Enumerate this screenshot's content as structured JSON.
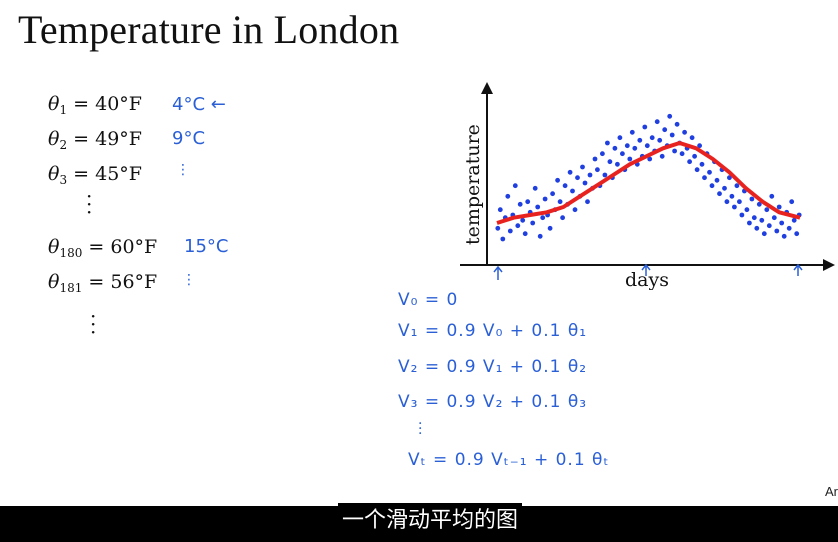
{
  "slide": {
    "title": "Temperature in London",
    "observations": [
      {
        "theta": "θ",
        "sub": "1",
        "value": "= 40°F",
        "note": "4°C ←"
      },
      {
        "theta": "θ",
        "sub": "2",
        "value": "= 49°F",
        "note": "9°C"
      },
      {
        "theta": "θ",
        "sub": "3",
        "value": "= 45°F",
        "note": "⋮"
      },
      {
        "theta": "θ",
        "sub": "180",
        "value": "= 60°F",
        "note": "15°C"
      },
      {
        "theta": "θ",
        "sub": "181",
        "value": "= 56°F",
        "note": "⋮"
      }
    ],
    "formulas": [
      "V₀ = 0",
      "V₁ = 0.9 V₀   + 0.1 θ₁",
      "V₂ = 0.9 V₁   + 0.1 θ₂",
      "V₃ = 0.9 V₂   + 0.1 θ₃",
      "Vₜ = 0.9 Vₜ₋₁  + 0.1 θₜ"
    ],
    "corner_text": "Ar",
    "caption": "一个滑动平均的图"
  },
  "chart_data": {
    "type": "scatter",
    "xlabel": "days",
    "ylabel": "temperature",
    "colors": {
      "points": "#1f3fe0",
      "average": "#e8231f",
      "axis": "#111111"
    },
    "series": [
      {
        "kind": "points",
        "x": [
          1,
          4,
          7,
          10,
          13,
          16,
          19,
          22,
          25,
          28,
          31,
          34,
          37,
          40,
          43,
          46,
          49,
          52,
          55,
          58,
          61,
          64,
          67,
          70,
          73,
          76,
          79,
          82,
          85,
          88,
          91,
          94,
          97,
          100,
          103,
          106,
          109,
          112,
          115,
          118,
          121,
          124,
          127,
          130,
          133,
          136,
          139,
          142,
          145,
          148,
          151,
          154,
          157,
          160,
          163,
          166,
          169,
          172,
          175,
          178,
          181,
          184,
          187,
          190,
          193,
          196,
          199,
          202,
          205,
          208,
          211,
          214,
          217,
          220,
          223,
          226,
          229,
          232,
          235,
          238,
          241,
          244,
          247,
          250,
          253,
          256,
          259,
          262,
          265,
          268,
          271,
          274,
          277,
          280,
          283,
          286,
          289,
          292,
          295,
          298,
          301,
          304,
          307,
          310,
          313,
          316,
          319,
          322,
          325,
          328,
          331,
          334,
          337,
          340,
          343,
          346,
          349,
          352,
          355,
          358,
          361,
          364
        ],
        "y": [
          40,
          47,
          36,
          44,
          52,
          39,
          45,
          56,
          41,
          49,
          43,
          38,
          50,
          46,
          42,
          55,
          48,
          37,
          44,
          51,
          45,
          40,
          53,
          47,
          58,
          50,
          44,
          56,
          49,
          61,
          54,
          47,
          59,
          52,
          63,
          57,
          50,
          60,
          55,
          66,
          62,
          56,
          68,
          60,
          72,
          65,
          59,
          70,
          64,
          74,
          68,
          62,
          71,
          66,
          76,
          70,
          64,
          73,
          67,
          78,
          71,
          66,
          74,
          69,
          80,
          73,
          67,
          77,
          71,
          82,
          75,
          69,
          79,
          72,
          68,
          76,
          70,
          65,
          74,
          67,
          62,
          71,
          64,
          59,
          68,
          61,
          56,
          65,
          58,
          53,
          62,
          55,
          50,
          59,
          52,
          48,
          56,
          50,
          45,
          54,
          47,
          42,
          51,
          44,
          40,
          49,
          43,
          38,
          47,
          41,
          52,
          44,
          39,
          48,
          42,
          37,
          46,
          40,
          50,
          43,
          38,
          45
        ]
      }
    ],
    "moving_average": {
      "x": [
        0,
        20,
        40,
        60,
        80,
        100,
        120,
        140,
        160,
        180,
        200,
        220,
        240,
        260,
        280,
        300,
        320,
        340,
        365
      ],
      "y": [
        42,
        44,
        45,
        46,
        48,
        52,
        56,
        60,
        64,
        67,
        70,
        72,
        70,
        66,
        61,
        55,
        50,
        46,
        44
      ]
    },
    "xlim": [
      0,
      365
    ],
    "ylim": [
      30,
      90
    ],
    "grid": false,
    "legend": "none"
  }
}
